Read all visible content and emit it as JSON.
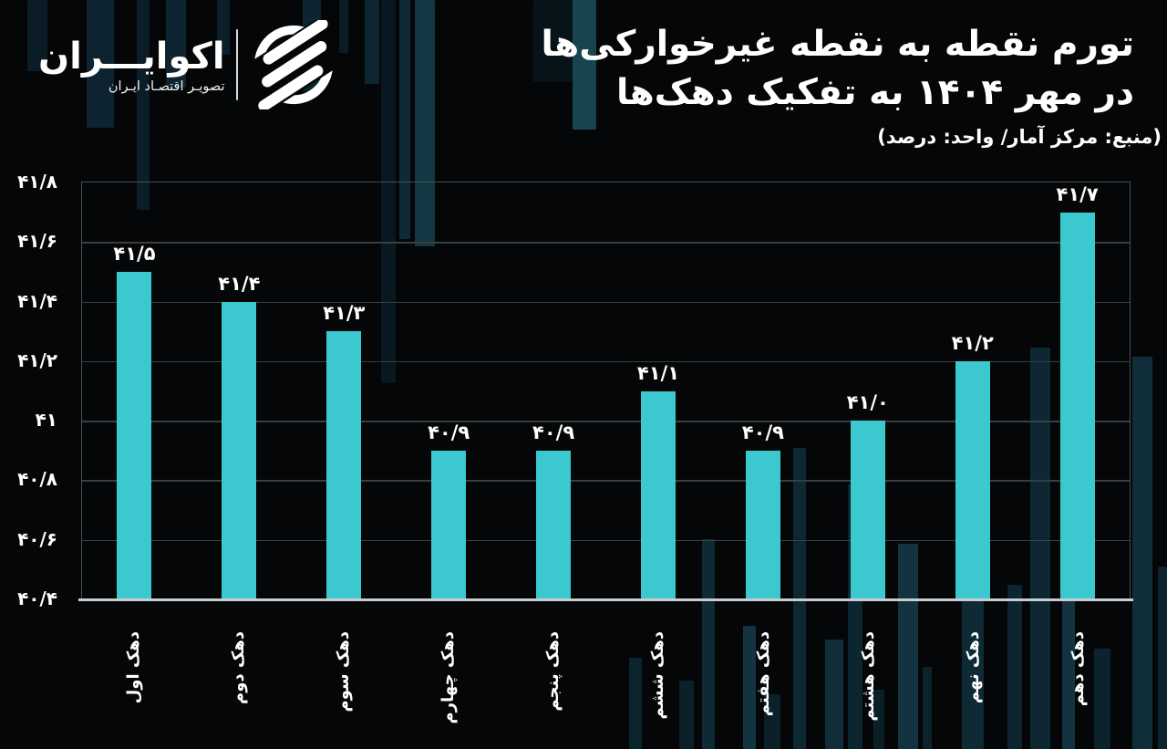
{
  "brand": {
    "name": "اکوایـــران",
    "tagline": "تصویـر اقتصـاد ایـران"
  },
  "header": {
    "title_line1": "تورم نقطه به نقطه غیرخوارکی‌ها",
    "title_line2": "در مهر ۱۴۰۴ به تفکیک دهک‌ها",
    "subtitle": "(منبع: مرکز آمار/ واحد: درصد)"
  },
  "colors": {
    "background": "#040607",
    "bar": "#3bc9cf",
    "grid": "#3a3e41",
    "axis": "#c9cdd1",
    "border": "#4a4e51",
    "text": "#ffffff"
  },
  "chart_data": {
    "type": "bar",
    "title": "تورم نقطه به نقطه غیرخوارکی‌ها در مهر ۱۴۰۴ به تفکیک دهک‌ها",
    "source": "(منبع: مرکز آمار/ واحد: درصد)",
    "unit": "درصد",
    "categories": [
      "دهک اول",
      "دهک دوم",
      "دهک سوم",
      "دهک چهارم",
      "دهک پنجم",
      "دهک ششم",
      "دهک هفتم",
      "دهک هشتم",
      "دهک نهم",
      "دهک دهم"
    ],
    "values": [
      41.5,
      41.4,
      41.3,
      40.9,
      40.9,
      41.1,
      40.9,
      41.0,
      41.2,
      41.7
    ],
    "value_labels": [
      "۴۱/۵",
      "۴۱/۴",
      "۴۱/۳",
      "۴۰/۹",
      "۴۰/۹",
      "۴۱/۱",
      "۴۰/۹",
      "۴۱/۰",
      "۴۱/۲",
      "۴۱/۷"
    ],
    "y_ticks": [
      {
        "value": 41.8,
        "label": "۴۱/۸"
      },
      {
        "value": 41.6,
        "label": "۴۱/۶"
      },
      {
        "value": 41.4,
        "label": "۴۱/۴"
      },
      {
        "value": 41.2,
        "label": "۴۱/۲"
      },
      {
        "value": 41.0,
        "label": "۴۱"
      },
      {
        "value": 40.8,
        "label": "۴۰/۸"
      },
      {
        "value": 40.6,
        "label": "۴۰/۶"
      },
      {
        "value": 40.4,
        "label": "۴۰/۴"
      }
    ],
    "ylim": [
      40.4,
      41.8
    ],
    "xlabel": "",
    "ylabel": "",
    "grid": true,
    "legend": false,
    "bar_color": "#3bc9cf"
  }
}
